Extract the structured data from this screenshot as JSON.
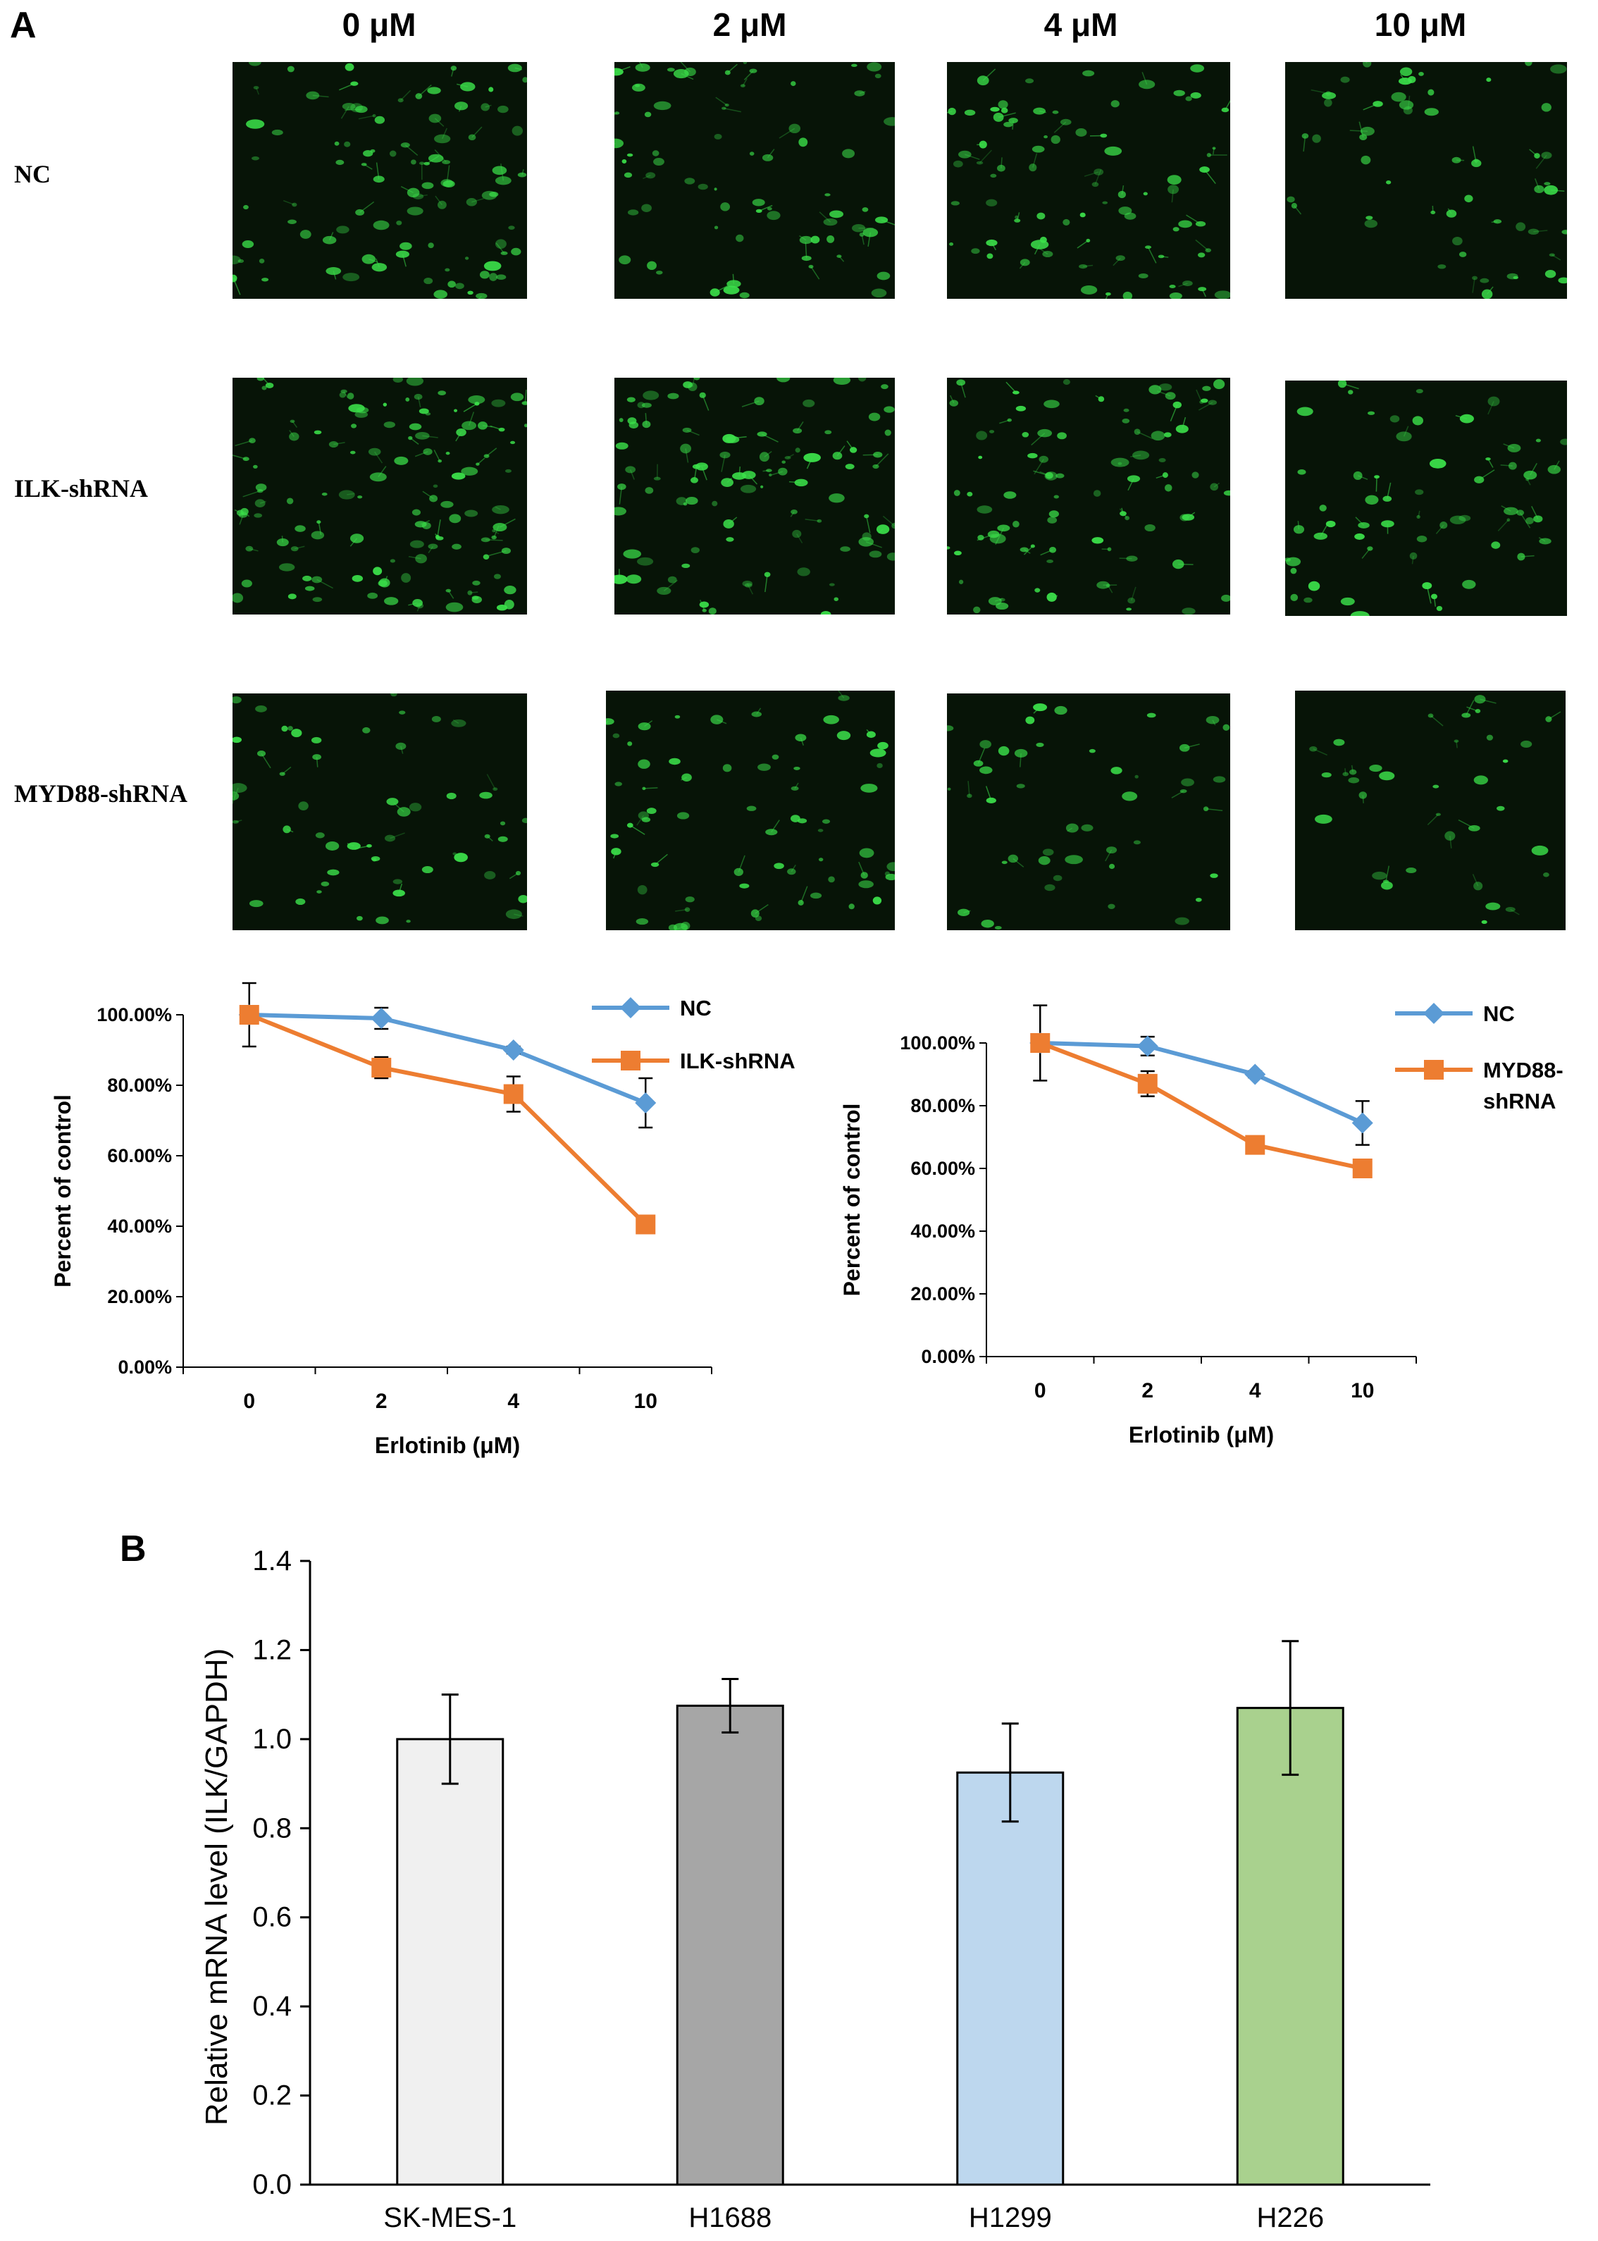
{
  "panel_a": {
    "letter": "A",
    "columns": [
      "0 μM",
      "2 μM",
      "4 μM",
      "10 μM"
    ],
    "rows": [
      "NC",
      "ILK-shRNA",
      "MYD88-shRNA"
    ]
  },
  "panel_b": {
    "letter": "B"
  },
  "colors": {
    "nc": "#5B9BD5",
    "shrna": "#ED7D31",
    "cell_glow": "#3BE04A",
    "bar_skmes1": "#F0F0F0",
    "bar_h1688": "#A6A6A6",
    "bar_h1299": "#BDD7EE",
    "bar_h226": "#A9D18E"
  },
  "chart_data": [
    {
      "type": "line",
      "xlabel": "Erlotinib (μM)",
      "ylabel": "Percent of control",
      "x": [
        "0",
        "2",
        "4",
        "10"
      ],
      "ylim": [
        0,
        1
      ],
      "yticks": [
        "0.00%",
        "20.00%",
        "40.00%",
        "60.00%",
        "80.00%",
        "100.00%"
      ],
      "legend": "top-right",
      "series": [
        {
          "name": "NC",
          "marker": "diamond",
          "values": [
            1.0,
            0.99,
            0.9,
            0.75
          ],
          "errors": [
            0.09,
            0.03,
            0.01,
            0.07
          ]
        },
        {
          "name": "ILK-shRNA",
          "marker": "square",
          "values": [
            1.0,
            0.85,
            0.775,
            0.405
          ],
          "errors": [
            0.0,
            0.03,
            0.05,
            0.0
          ]
        }
      ]
    },
    {
      "type": "line",
      "xlabel": "Erlotinib (μM)",
      "ylabel": "Percent of control",
      "x": [
        "0",
        "2",
        "4",
        "10"
      ],
      "ylim": [
        0,
        1
      ],
      "yticks": [
        "0.00%",
        "20.00%",
        "40.00%",
        "60.00%",
        "80.00%",
        "100.00%"
      ],
      "legend": "top-right",
      "series": [
        {
          "name": "NC",
          "marker": "diamond",
          "values": [
            1.0,
            0.99,
            0.9,
            0.745
          ],
          "errors": [
            0.12,
            0.03,
            0.01,
            0.07
          ]
        },
        {
          "name": "MYD88-shRNA",
          "legend_lines": [
            "MYD88-",
            "shRNA"
          ],
          "marker": "square",
          "values": [
            1.0,
            0.87,
            0.675,
            0.6
          ],
          "errors": [
            0.0,
            0.04,
            0.0,
            0.0
          ]
        }
      ]
    },
    {
      "type": "bar",
      "xlabel": "",
      "ylabel": "Relative mRNA level  (ILK/GAPDH)",
      "categories": [
        "SK-MES-1",
        "H1688",
        "H1299",
        "H226"
      ],
      "values": [
        1.0,
        1.075,
        0.925,
        1.07
      ],
      "errors": [
        0.1,
        0.06,
        0.11,
        0.15
      ],
      "ylim": [
        0,
        1.4
      ],
      "yticks": [
        "0.0",
        "0.2",
        "0.4",
        "0.6",
        "0.8",
        "1.0",
        "1.2",
        "1.4"
      ]
    }
  ]
}
